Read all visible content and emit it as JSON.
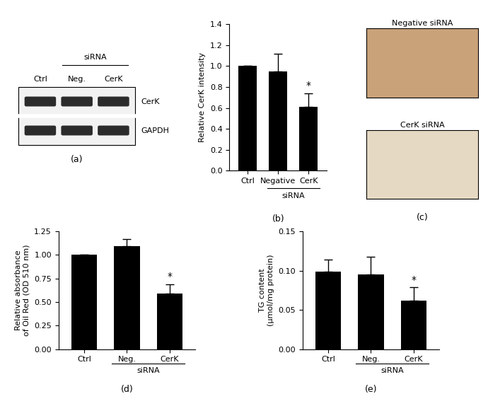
{
  "blot": {
    "caption": "(a)",
    "header": "siRNA",
    "header_lanes": [
      "Neg.",
      "CerK"
    ],
    "lanes": [
      "Ctrl",
      "Neg.",
      "CerK"
    ],
    "rows": [
      "CerK",
      "GAPDH"
    ]
  },
  "micrographs": {
    "caption": "(c)",
    "panels": [
      "Negative siRNA",
      "CerK siRNA"
    ]
  },
  "chart_data": [
    {
      "type": "bar",
      "caption": "(b)",
      "categories": [
        "Ctrl",
        "Negative",
        "CerK"
      ],
      "values": [
        1.0,
        0.95,
        0.61
      ],
      "errors": [
        0,
        0.17,
        0.13
      ],
      "significance": [
        null,
        null,
        "*"
      ],
      "x_group_label": "siRNA",
      "x_group_members": [
        "Negative",
        "CerK"
      ],
      "y_label": "Relative CerK intensity",
      "color": "#000000",
      "ylim": [
        0,
        1.4
      ],
      "yticks": [
        0.0,
        0.2,
        0.4,
        0.6,
        0.8,
        1.0,
        1.2,
        1.4
      ]
    },
    {
      "type": "bar",
      "caption": "(d)",
      "categories": [
        "Ctrl",
        "Neg.",
        "CerK"
      ],
      "values": [
        1.0,
        1.09,
        0.59
      ],
      "errors": [
        0,
        0.08,
        0.1
      ],
      "significance": [
        null,
        null,
        "*"
      ],
      "x_group_label": "siRNA",
      "x_group_members": [
        "Neg.",
        "CerK"
      ],
      "y_label": "Relative absorbance\nof Oil Red (OD 510 nm)",
      "color": "#000000",
      "ylim": [
        0,
        1.25
      ],
      "yticks": [
        {
          "value": 0,
          "label": "0.00"
        },
        0.25,
        {
          "value": 0.5,
          "label": "0.50"
        },
        0.75,
        {
          "value": 1.0,
          "label": "1.00"
        },
        1.25
      ]
    },
    {
      "type": "bar",
      "caption": "(e)",
      "categories": [
        "Ctrl",
        "Neg.",
        "CerK"
      ],
      "values": [
        0.099,
        0.095,
        0.062
      ],
      "errors": [
        0.015,
        0.023,
        0.017
      ],
      "significance": [
        null,
        null,
        "*"
      ],
      "x_group_label": "siRNA",
      "x_group_members": [
        "Neg.",
        "CerK"
      ],
      "y_label": "TG content\n(μmol/mg protein)",
      "color": "#000000",
      "ylim": [
        0,
        0.15
      ],
      "yticks": [
        {
          "value": 0,
          "label": "0.00"
        },
        0.05,
        {
          "value": 0.1,
          "label": "0.10"
        },
        0.15
      ]
    }
  ]
}
